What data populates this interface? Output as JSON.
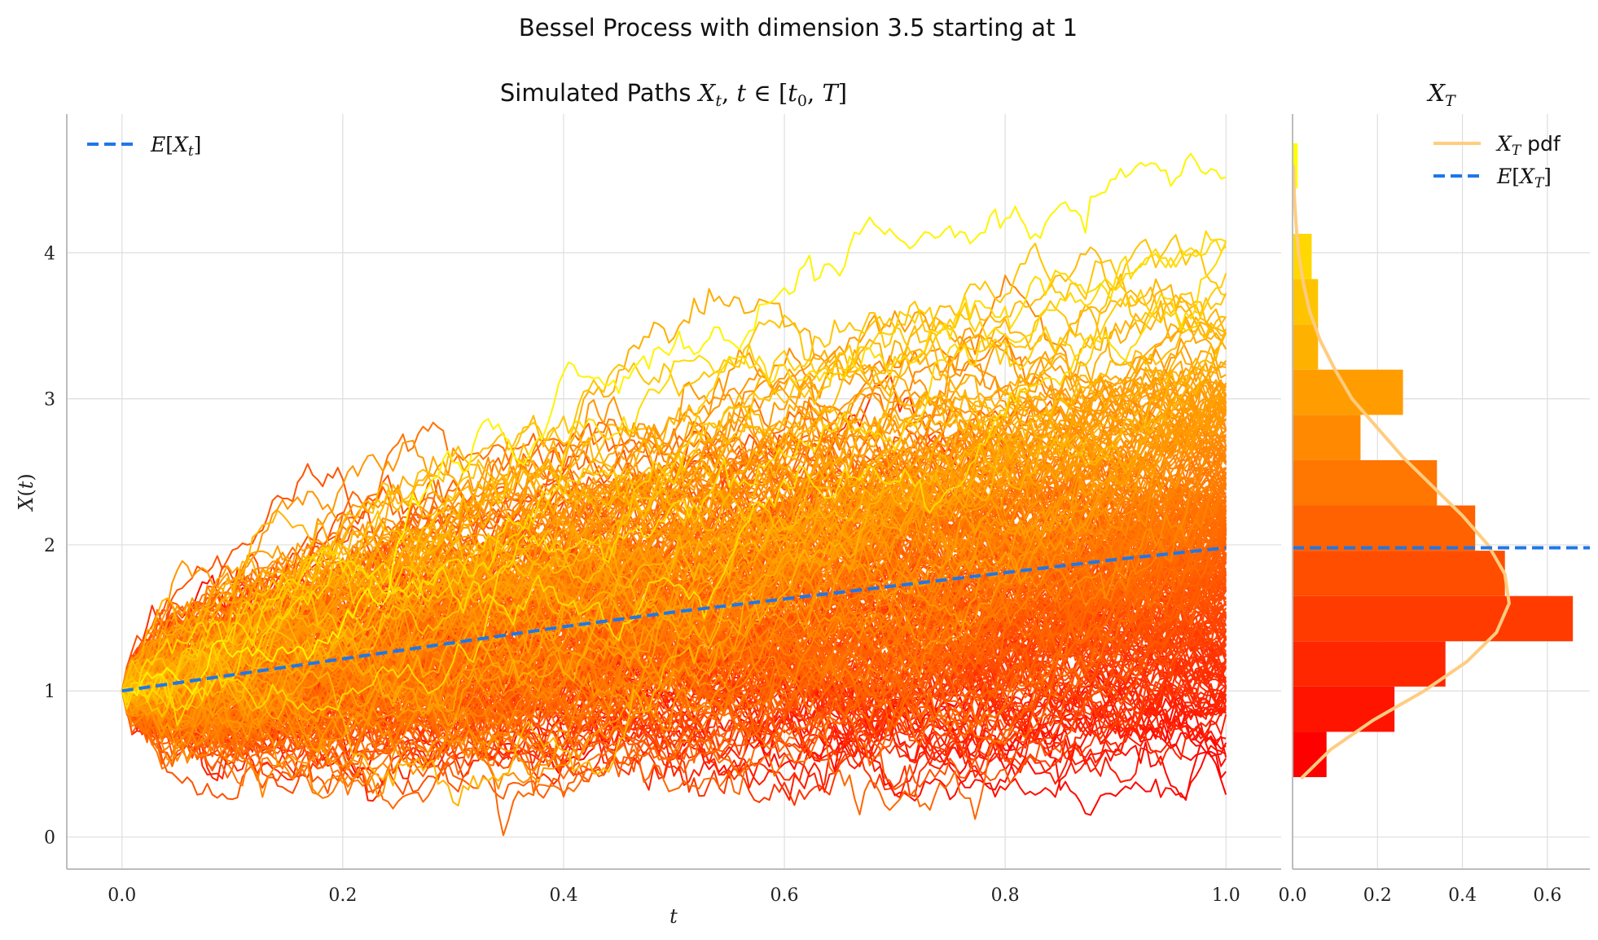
{
  "figure": {
    "suptitle": "Bessel Process with dimension 3.5 starting at 1"
  },
  "chart_data": [
    {
      "type": "line",
      "title": "Simulated Paths X_t, t ∈ [t_0, T]",
      "xlabel": "t",
      "ylabel": "X(t)",
      "xlim": [
        -0.05,
        1.05
      ],
      "ylim": [
        -0.22,
        4.95
      ],
      "x_ticks": [
        0.0,
        0.2,
        0.4,
        0.6,
        0.8,
        1.0
      ],
      "x_tick_labels": [
        "0.0",
        "0.2",
        "0.4",
        "0.6",
        "0.8",
        "1.0"
      ],
      "y_ticks": [
        0,
        1,
        2,
        3,
        4
      ],
      "y_tick_labels": [
        "0",
        "1",
        "2",
        "3",
        "4"
      ],
      "grid": true,
      "legend": {
        "position": "top-left",
        "entries": [
          "E[X_t]"
        ]
      },
      "series": [
        {
          "name": "E[X_t]",
          "style": "dashed",
          "color": "#1f77e8",
          "x": [
            0.0,
            0.1,
            0.2,
            0.3,
            0.4,
            0.5,
            0.6,
            0.7,
            0.8,
            0.9,
            1.0
          ],
          "values": [
            1.0,
            1.11,
            1.22,
            1.33,
            1.44,
            1.54,
            1.63,
            1.72,
            1.81,
            1.9,
            1.98
          ]
        }
      ],
      "paths": {
        "count": 300,
        "start_value": 1,
        "x_range": [
          0.0,
          1.0
        ],
        "colormap": "autumn",
        "color_low": "#ff0000",
        "color_high": "#ffff00",
        "terminal_value_range": [
          0.4,
          4.7
        ]
      }
    },
    {
      "type": "bar",
      "orientation": "horizontal",
      "title": "X_T",
      "xlim": [
        0.0,
        0.7
      ],
      "ylim": [
        -0.22,
        4.95
      ],
      "x_ticks": [
        0.0,
        0.2,
        0.4,
        0.6
      ],
      "x_tick_labels": [
        "0.0",
        "0.2",
        "0.4",
        "0.6"
      ],
      "grid": true,
      "legend": {
        "position": "top-right",
        "entries": [
          "X_T pdf",
          "E[X_T]"
        ]
      },
      "bins": [
        {
          "from": 0.41,
          "to": 0.72,
          "density": 0.08
        },
        {
          "from": 0.72,
          "to": 1.03,
          "density": 0.24
        },
        {
          "from": 1.03,
          "to": 1.34,
          "density": 0.36
        },
        {
          "from": 1.34,
          "to": 1.65,
          "density": 0.66
        },
        {
          "from": 1.65,
          "to": 1.96,
          "density": 0.5
        },
        {
          "from": 1.96,
          "to": 2.27,
          "density": 0.43
        },
        {
          "from": 2.27,
          "to": 2.58,
          "density": 0.34
        },
        {
          "from": 2.58,
          "to": 2.89,
          "density": 0.16
        },
        {
          "from": 2.89,
          "to": 3.2,
          "density": 0.26
        },
        {
          "from": 3.2,
          "to": 3.51,
          "density": 0.06
        },
        {
          "from": 3.51,
          "to": 3.82,
          "density": 0.06
        },
        {
          "from": 3.82,
          "to": 4.13,
          "density": 0.045
        },
        {
          "from": 4.13,
          "to": 4.44,
          "density": 0.0
        },
        {
          "from": 4.44,
          "to": 4.75,
          "density": 0.012
        }
      ],
      "pdf": {
        "name": "X_T pdf",
        "color": "#ffcc80",
        "y": [
          0.4,
          0.6,
          0.8,
          1.0,
          1.2,
          1.4,
          1.6,
          1.8,
          2.0,
          2.2,
          2.4,
          2.6,
          2.8,
          3.0,
          3.2,
          3.4,
          3.6,
          3.8,
          4.0,
          4.2,
          4.4,
          4.6
        ],
        "density": [
          0.02,
          0.09,
          0.19,
          0.31,
          0.41,
          0.48,
          0.51,
          0.5,
          0.46,
          0.4,
          0.33,
          0.26,
          0.2,
          0.14,
          0.1,
          0.065,
          0.04,
          0.025,
          0.014,
          0.008,
          0.004,
          0.002
        ]
      },
      "mean": {
        "name": "E[X_T]",
        "value": 1.98,
        "style": "dashed",
        "color": "#1f77e8"
      },
      "bin_color_low": "#ff0000",
      "bin_color_high": "#ffff00"
    }
  ]
}
